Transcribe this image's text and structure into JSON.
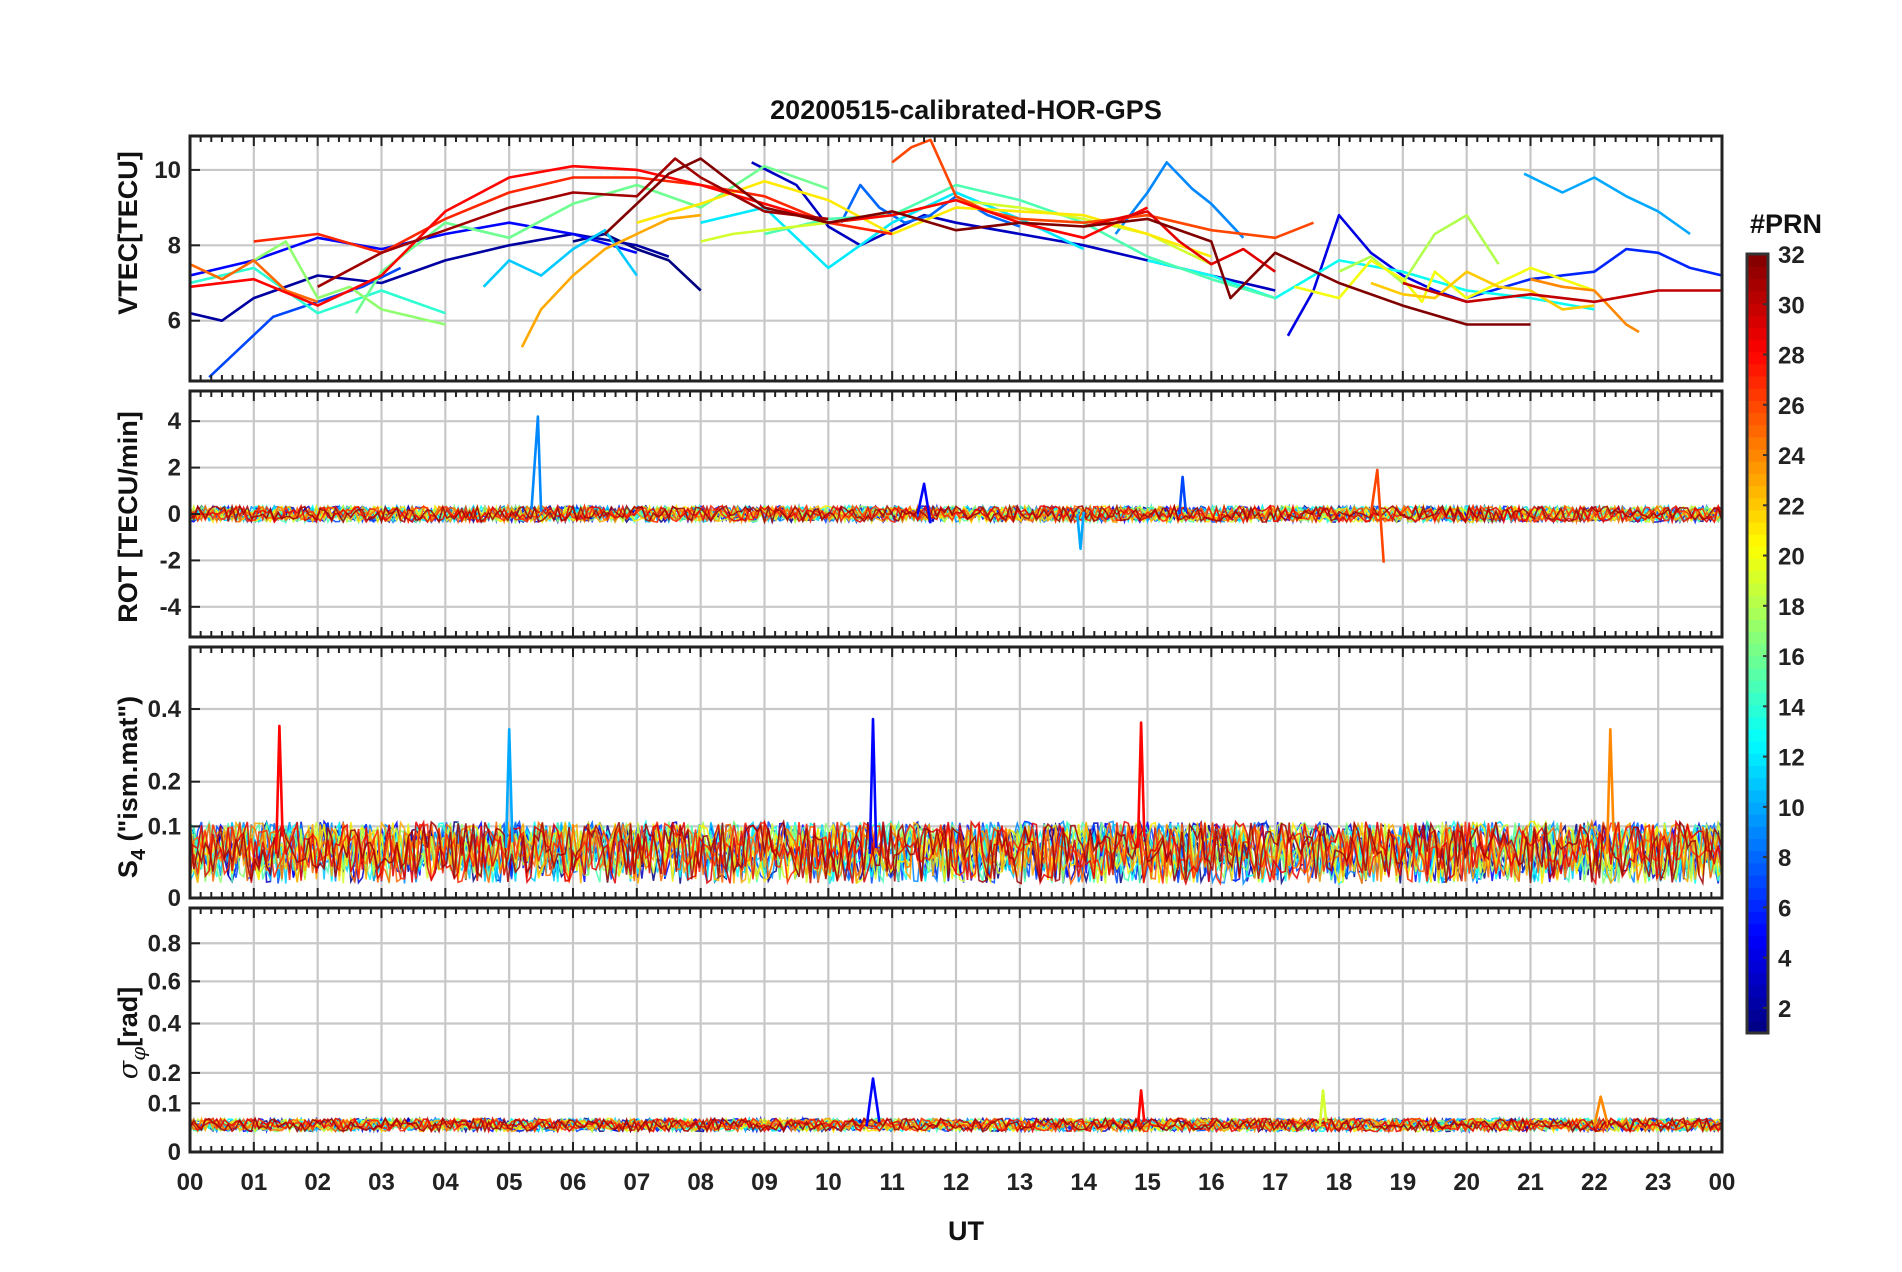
{
  "chart_data": {
    "type": "line",
    "title": "20200515-calibrated-HOR-GPS",
    "xlabel": "UT",
    "x_tick_labels": [
      "00",
      "01",
      "02",
      "03",
      "04",
      "05",
      "06",
      "07",
      "08",
      "09",
      "10",
      "11",
      "12",
      "13",
      "14",
      "15",
      "16",
      "17",
      "18",
      "19",
      "20",
      "21",
      "22",
      "23",
      "00"
    ],
    "xlim": [
      0,
      24
    ],
    "panels": [
      {
        "ylabel": "VTEC[TECU]",
        "ylim": [
          4.4,
          10.9
        ],
        "yticks": [
          6,
          8,
          10
        ],
        "ytick_labels": [
          "6",
          "8",
          "10"
        ],
        "series": [
          {
            "prn": 1,
            "x": [
              6.0,
              6.5,
              7.0,
              7.5,
              8.0
            ],
            "y": [
              8.1,
              8.3,
              7.9,
              7.6,
              6.8
            ]
          },
          {
            "prn": 2,
            "x": [
              0.0,
              0.5,
              1.0,
              2.0,
              3.0,
              4.0,
              5.0,
              6.0,
              7.0,
              7.5
            ],
            "y": [
              6.2,
              6.0,
              6.6,
              7.2,
              7.0,
              7.6,
              8.0,
              8.3,
              8.0,
              7.7
            ]
          },
          {
            "prn": 3,
            "x": [
              8.8,
              9.5,
              10.0,
              10.5,
              11.0,
              11.5,
              12.0,
              13.0,
              14.0,
              15.0,
              16.0,
              17.0
            ],
            "y": [
              10.2,
              9.6,
              8.5,
              8.0,
              8.4,
              8.8,
              8.6,
              8.3,
              8.0,
              7.6,
              7.2,
              6.8
            ]
          },
          {
            "prn": 4,
            "x": [
              17.2,
              17.6,
              18.0,
              18.5,
              19.0,
              19.5,
              20.0
            ],
            "y": [
              5.6,
              6.8,
              8.8,
              7.8,
              7.2,
              6.8,
              6.5
            ]
          },
          {
            "prn": 5,
            "x": [
              0.0,
              1.0,
              2.0,
              3.0,
              4.0,
              5.0,
              6.0,
              7.0
            ],
            "y": [
              7.2,
              7.6,
              8.2,
              7.9,
              8.3,
              8.6,
              8.3,
              7.8
            ]
          },
          {
            "prn": 6,
            "x": [
              20.0,
              21.0,
              22.0,
              22.5,
              23.0,
              23.5,
              24.0
            ],
            "y": [
              6.6,
              7.1,
              7.3,
              7.9,
              7.8,
              7.4,
              7.2
            ]
          },
          {
            "prn": 7,
            "x": [
              0.3,
              0.8,
              1.3,
              2.0,
              2.7,
              3.3
            ],
            "y": [
              4.5,
              5.3,
              6.1,
              6.5,
              6.9,
              7.4
            ]
          },
          {
            "prn": 8,
            "x": [
              10.2,
              10.5,
              10.8,
              11.2,
              11.6,
              12.0,
              12.5,
              13.0
            ],
            "y": [
              8.6,
              9.6,
              9.0,
              8.6,
              8.8,
              9.3,
              8.8,
              8.5
            ]
          },
          {
            "prn": 9,
            "x": [
              14.5,
              15.0,
              15.3,
              15.7,
              16.0,
              16.5
            ],
            "y": [
              8.3,
              9.4,
              10.2,
              9.5,
              9.1,
              8.2
            ]
          },
          {
            "prn": 10,
            "x": [
              20.9,
              21.5,
              22.0,
              22.5,
              23.0,
              23.5
            ],
            "y": [
              9.9,
              9.4,
              9.8,
              9.3,
              8.9,
              8.3
            ]
          },
          {
            "prn": 11,
            "x": [
              4.6,
              5.0,
              5.5,
              6.0,
              6.5,
              7.0
            ],
            "y": [
              6.9,
              7.6,
              7.2,
              7.9,
              8.4,
              7.2
            ]
          },
          {
            "prn": 12,
            "x": [
              8.0,
              9.0,
              10.0,
              11.0,
              12.0,
              13.0,
              14.0
            ],
            "y": [
              8.6,
              9.0,
              7.4,
              8.6,
              9.4,
              8.7,
              7.9
            ]
          },
          {
            "prn": 13,
            "x": [
              15.0,
              16.0,
              17.0,
              18.0,
              19.0,
              20.0,
              21.0,
              22.0
            ],
            "y": [
              7.6,
              7.2,
              6.6,
              7.6,
              7.3,
              6.8,
              6.6,
              6.3
            ]
          },
          {
            "prn": 14,
            "x": [
              0.0,
              1.0,
              2.0,
              3.0,
              4.0
            ],
            "y": [
              7.0,
              7.4,
              6.2,
              6.8,
              6.2
            ]
          },
          {
            "prn": 15,
            "x": [
              9.0,
              10.0,
              11.0,
              12.0,
              13.0,
              14.0,
              15.0,
              16.0,
              17.0
            ],
            "y": [
              8.3,
              8.7,
              8.8,
              9.6,
              9.2,
              8.6,
              7.7,
              7.1,
              6.6
            ]
          },
          {
            "prn": 16,
            "x": [
              2.6,
              3.0,
              4.0,
              5.0,
              6.0,
              7.0,
              8.0,
              9.0,
              10.0
            ],
            "y": [
              6.2,
              7.3,
              8.6,
              8.2,
              9.1,
              9.6,
              9.0,
              10.1,
              9.5
            ]
          },
          {
            "prn": 17,
            "x": [
              1.0,
              1.5,
              2.0,
              2.5,
              3.0,
              4.0
            ],
            "y": [
              7.6,
              8.1,
              6.6,
              6.9,
              6.3,
              5.9
            ]
          },
          {
            "prn": 18,
            "x": [
              18.0,
              18.5,
              19.0,
              19.5,
              20.0,
              20.5
            ],
            "y": [
              7.3,
              7.7,
              7.0,
              8.3,
              8.8,
              7.5
            ]
          },
          {
            "prn": 19,
            "x": [
              8.0,
              8.5,
              9.0,
              10.0,
              11.0,
              12.0,
              13.0,
              14.0,
              15.0,
              16.0
            ],
            "y": [
              8.1,
              8.3,
              8.4,
              8.6,
              8.8,
              9.2,
              9.0,
              8.7,
              8.3,
              7.5
            ]
          },
          {
            "prn": 20,
            "x": [
              17.3,
              18.0,
              18.5,
              19.0,
              19.3,
              19.5,
              20.0,
              21.0,
              22.0
            ],
            "y": [
              6.9,
              6.6,
              7.6,
              7.1,
              6.5,
              7.3,
              6.6,
              7.4,
              6.8
            ]
          },
          {
            "prn": 21,
            "x": [
              7.0,
              8.0,
              9.0,
              10.0,
              11.0,
              12.0,
              13.0,
              14.0,
              15.0,
              16.0
            ],
            "y": [
              8.6,
              9.1,
              9.7,
              9.2,
              8.3,
              9.0,
              8.9,
              8.8,
              8.3,
              7.7
            ]
          },
          {
            "prn": 22,
            "x": [
              18.5,
              19.0,
              19.5,
              20.0,
              20.5,
              21.0,
              21.5,
              22.0
            ],
            "y": [
              7.0,
              6.7,
              6.6,
              7.3,
              6.9,
              6.8,
              6.3,
              6.4
            ]
          },
          {
            "prn": 23,
            "x": [
              5.2,
              5.5,
              6.0,
              6.5,
              7.0,
              7.5,
              8.0
            ],
            "y": [
              5.3,
              6.3,
              7.2,
              7.9,
              8.3,
              8.7,
              8.8
            ]
          },
          {
            "prn": 24,
            "x": [
              21.0,
              21.5,
              22.0,
              22.5,
              22.7
            ],
            "y": [
              7.1,
              6.9,
              6.8,
              5.9,
              5.7
            ]
          },
          {
            "prn": 25,
            "x": [
              0.0,
              0.5,
              1.0,
              1.5,
              2.0
            ],
            "y": [
              7.5,
              7.1,
              7.6,
              6.8,
              6.5
            ]
          },
          {
            "prn": 26,
            "x": [
              11.0,
              11.3,
              11.6,
              12.0,
              12.5,
              13.0,
              14.0,
              15.0,
              16.0,
              17.0,
              17.6
            ],
            "y": [
              10.2,
              10.6,
              10.8,
              9.3,
              8.9,
              8.7,
              8.6,
              8.8,
              8.4,
              8.2,
              8.6
            ]
          },
          {
            "prn": 27,
            "x": [
              1.0,
              2.0,
              3.0,
              4.0,
              5.0,
              6.0,
              7.0,
              8.0,
              9.0,
              10.0,
              11.0
            ],
            "y": [
              8.1,
              8.3,
              7.8,
              8.7,
              9.4,
              9.8,
              9.8,
              9.6,
              9.3,
              8.6,
              8.3
            ]
          },
          {
            "prn": 28,
            "x": [
              0.0,
              1.0,
              2.0,
              3.0,
              4.0,
              5.0,
              6.0,
              7.0,
              8.0,
              9.0,
              10.0,
              11.0,
              12.0,
              13.0,
              14.0,
              15.0
            ],
            "y": [
              6.9,
              7.1,
              6.4,
              7.2,
              8.9,
              9.8,
              10.1,
              10.0,
              9.6,
              9.1,
              8.6,
              8.8,
              9.2,
              8.6,
              8.2,
              9.0
            ]
          },
          {
            "prn": 29,
            "x": [
              14.0,
              15.0,
              15.5,
              16.0,
              16.5,
              17.0
            ],
            "y": [
              8.5,
              8.9,
              8.1,
              7.5,
              7.9,
              7.3
            ]
          },
          {
            "prn": 30,
            "x": [
              19.0,
              20.0,
              21.0,
              22.0,
              23.0,
              24.0
            ],
            "y": [
              7.0,
              6.5,
              6.7,
              6.5,
              6.8,
              6.8
            ]
          },
          {
            "prn": 31,
            "x": [
              2.0,
              3.0,
              4.0,
              5.0,
              6.0,
              7.0,
              7.6,
              8.0,
              9.0,
              10.0
            ],
            "y": [
              6.9,
              7.8,
              8.4,
              9.0,
              9.4,
              9.3,
              10.3,
              9.8,
              8.9,
              8.7
            ]
          },
          {
            "prn": 32,
            "x": [
              6.5,
              7.0,
              7.5,
              8.0,
              9.0,
              10.0,
              11.0,
              12.0,
              13.0,
              14.0,
              15.0,
              16.0,
              16.3,
              17.0,
              18.0,
              19.0,
              20.0,
              21.0
            ],
            "y": [
              8.3,
              9.1,
              9.9,
              10.3,
              9.0,
              8.6,
              8.9,
              8.4,
              8.6,
              8.5,
              8.7,
              8.1,
              6.6,
              7.8,
              7.0,
              6.4,
              5.9,
              5.9
            ]
          }
        ]
      },
      {
        "ylabel": "ROT [TECU/min]",
        "ylim": [
          -5.3,
          5.3
        ],
        "yticks": [
          -4,
          -2,
          0,
          2,
          4
        ],
        "ytick_labels": [
          "-4",
          "-2",
          "0",
          "2",
          "4"
        ],
        "series": [
          {
            "prn": 9,
            "x": [
              5.35,
              5.45,
              5.5
            ],
            "y": [
              0.2,
              4.2,
              0.1
            ]
          },
          {
            "prn": 26,
            "x": [
              18.5,
              18.6,
              18.7
            ],
            "y": [
              0.0,
              1.9,
              -2.1
            ]
          },
          {
            "prn": 5,
            "x": [
              11.4,
              11.5,
              11.6
            ],
            "y": [
              0.0,
              1.3,
              -0.4
            ]
          },
          {
            "prn": 10,
            "x": [
              13.9,
              13.95,
              14.0
            ],
            "y": [
              0.0,
              -1.5,
              0.1
            ]
          },
          {
            "prn": 7,
            "x": [
              15.5,
              15.55,
              15.6
            ],
            "y": [
              0.0,
              1.6,
              0.1
            ]
          }
        ]
      },
      {
        "ylabel": "S4 (\"ism.mat\")",
        "ylim": [
          0,
          0.6
        ],
        "yticks": [
          0,
          0.1,
          0.2,
          0.4
        ],
        "ytick_labels": [
          "0",
          "0.1",
          "0.2",
          "0.4"
        ],
        "series": [
          {
            "prn": 28,
            "x": [
              1.35,
              1.4,
              1.45
            ],
            "y": [
              0.05,
              0.35,
              0.08
            ]
          },
          {
            "prn": 10,
            "x": [
              4.95,
              5.0,
              5.05
            ],
            "y": [
              0.06,
              0.34,
              0.07
            ]
          },
          {
            "prn": 5,
            "x": [
              10.65,
              10.7,
              10.75
            ],
            "y": [
              0.05,
              0.37,
              0.06
            ]
          },
          {
            "prn": 28,
            "x": [
              14.85,
              14.9,
              14.95
            ],
            "y": [
              0.06,
              0.36,
              0.08
            ]
          },
          {
            "prn": 24,
            "x": [
              22.2,
              22.25,
              22.3
            ],
            "y": [
              0.05,
              0.34,
              0.09
            ]
          }
        ]
      },
      {
        "ylabel": "σφ[rad]",
        "ylim": [
          0,
          1.0
        ],
        "yticks": [
          0,
          0.1,
          0.2,
          0.4,
          0.6,
          0.8
        ],
        "ytick_labels": [
          "0",
          "0.1",
          "0.2",
          "0.4",
          "0.6",
          "0.8"
        ],
        "series": [
          {
            "prn": 5,
            "x": [
              10.6,
              10.7,
              10.8
            ],
            "y": [
              0.04,
              0.18,
              0.05
            ]
          },
          {
            "prn": 28,
            "x": [
              14.85,
              14.9,
              14.95
            ],
            "y": [
              0.04,
              0.14,
              0.05
            ]
          },
          {
            "prn": 19,
            "x": [
              17.7,
              17.75,
              17.8
            ],
            "y": [
              0.04,
              0.14,
              0.05
            ]
          },
          {
            "prn": 24,
            "x": [
              22.0,
              22.1,
              22.2
            ],
            "y": [
              0.04,
              0.12,
              0.05
            ]
          }
        ]
      }
    ],
    "colorbar": {
      "title": "#PRN",
      "range": [
        1,
        32
      ],
      "ticks": [
        2,
        4,
        6,
        8,
        10,
        12,
        14,
        16,
        18,
        20,
        22,
        24,
        26,
        28,
        30,
        32
      ],
      "tick_labels": [
        "2",
        "4",
        "6",
        "8",
        "10",
        "12",
        "14",
        "16",
        "18",
        "20",
        "22",
        "24",
        "26",
        "28",
        "30",
        "32"
      ],
      "colormap": "jet"
    }
  }
}
